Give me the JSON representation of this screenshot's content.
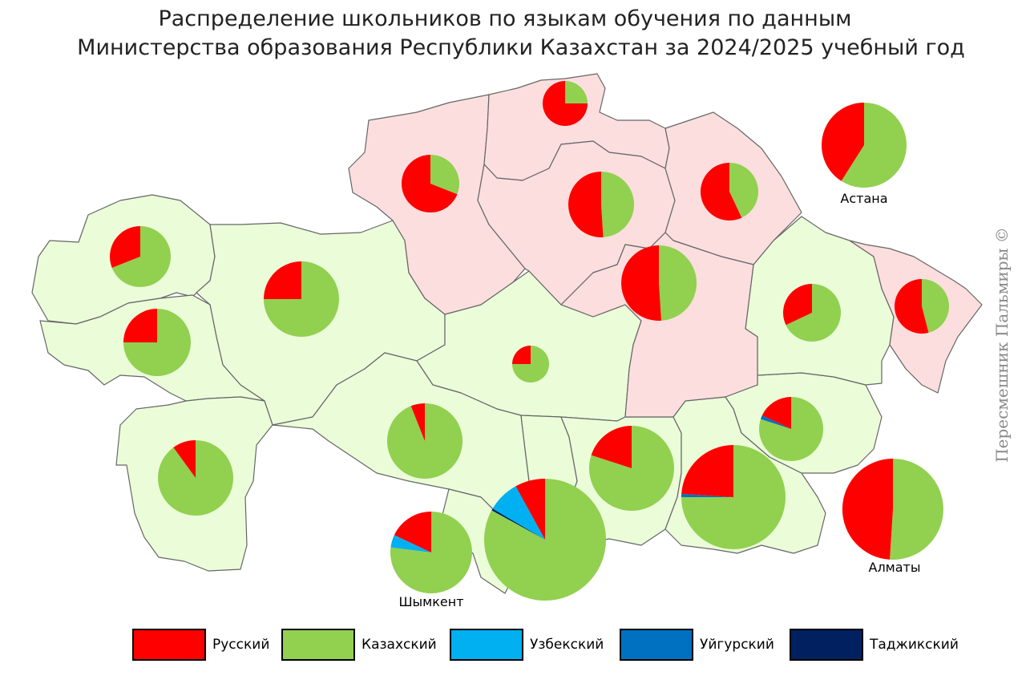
{
  "title": {
    "line1": "Распределение школьников по языкам обучения по данным",
    "line2": "Министерства образования Республики Казахстан за 2024/2025 учебный год"
  },
  "watermark": "Пересмешник Пальмиры ©",
  "colors": {
    "russian": "#ff0000",
    "kazakh": "#92d050",
    "uzbek": "#00b0f0",
    "uyghur": "#0070c0",
    "tajik": "#002060",
    "region_kazakh_majority": "#ebfcd9",
    "region_russian_share": "#fcdede",
    "border": "#666666"
  },
  "legend": [
    {
      "key": "russian",
      "label": "Русский",
      "color": "#ff0000"
    },
    {
      "key": "kazakh",
      "label": "Казахский",
      "color": "#92d050"
    },
    {
      "key": "uzbek",
      "label": "Узбекский",
      "color": "#00b0f0"
    },
    {
      "key": "uyghur",
      "label": "Уйгурский",
      "color": "#0070c0"
    },
    {
      "key": "tajik",
      "label": "Таджикский",
      "color": "#002060"
    }
  ],
  "city_labels": {
    "astana": "Астана",
    "almaty": "Алматы",
    "shymkent": "Шымкент"
  },
  "pies": [
    {
      "id": "north-kazakhstan",
      "shares": {
        "kazakh": 0.25,
        "russian": 0.75
      }
    },
    {
      "id": "kostanay",
      "shares": {
        "kazakh": 0.31,
        "russian": 0.69
      }
    },
    {
      "id": "akmola",
      "shares": {
        "kazakh": 0.49,
        "russian": 0.51
      }
    },
    {
      "id": "pavlodar",
      "shares": {
        "kazakh": 0.43,
        "russian": 0.57
      }
    },
    {
      "id": "astana",
      "shares": {
        "kazakh": 0.59,
        "russian": 0.41
      }
    },
    {
      "id": "west-kazakhstan",
      "shares": {
        "kazakh": 0.69,
        "russian": 0.31
      }
    },
    {
      "id": "aktobe",
      "shares": {
        "kazakh": 0.75,
        "russian": 0.25
      }
    },
    {
      "id": "karaganda",
      "shares": {
        "kazakh": 0.49,
        "russian": 0.51
      }
    },
    {
      "id": "abai",
      "shares": {
        "kazakh": 0.68,
        "russian": 0.32
      }
    },
    {
      "id": "east-kazakhstan",
      "shares": {
        "kazakh": 0.46,
        "russian": 0.54
      }
    },
    {
      "id": "atyrau",
      "shares": {
        "kazakh": 0.75,
        "russian": 0.25
      }
    },
    {
      "id": "ulytau",
      "shares": {
        "kazakh": 0.75,
        "russian": 0.25
      }
    },
    {
      "id": "mangystau",
      "shares": {
        "kazakh": 0.9,
        "russian": 0.1
      }
    },
    {
      "id": "kyzylorda",
      "shares": {
        "kazakh": 0.94,
        "russian": 0.06
      }
    },
    {
      "id": "zhetysu",
      "shares": {
        "kazakh": 0.8,
        "russian": 0.18,
        "uyghur": 0.02
      }
    },
    {
      "id": "zhambyl",
      "shares": {
        "kazakh": 0.8,
        "russian": 0.2
      }
    },
    {
      "id": "almaty-region",
      "shares": {
        "kazakh": 0.75,
        "russian": 0.24,
        "uyghur": 0.01
      }
    },
    {
      "id": "almaty-city",
      "shares": {
        "kazakh": 0.51,
        "russian": 0.49
      }
    },
    {
      "id": "shymkent",
      "shares": {
        "kazakh": 0.77,
        "russian": 0.18,
        "uzbek": 0.05
      }
    },
    {
      "id": "turkistan",
      "shares": {
        "kazakh": 0.83,
        "russian": 0.08,
        "uzbek": 0.085,
        "tajik": 0.005
      }
    }
  ]
}
